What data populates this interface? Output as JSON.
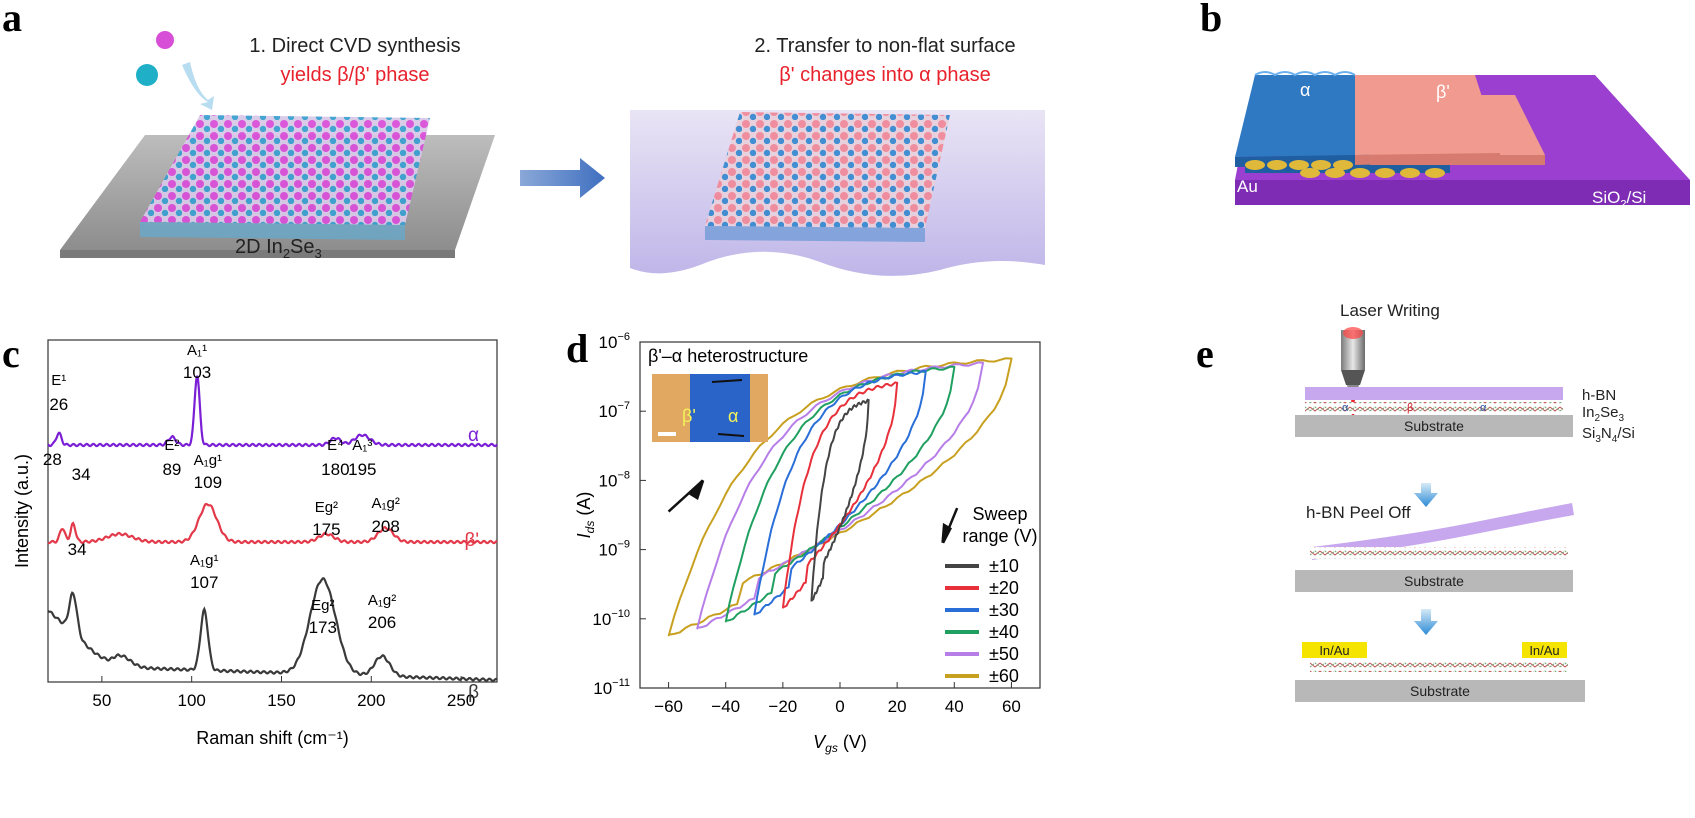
{
  "panel_labels": {
    "a": "a",
    "b": "b",
    "c": "c",
    "d": "d",
    "e": "e"
  },
  "panel_a": {
    "step1_title": "1. Direct CVD synthesis",
    "step1_sub": "yields β/β' phase",
    "step2_title": "2. Transfer to non-flat surface",
    "step2_sub": "β' changes into α phase",
    "material_label": "2D In",
    "material_sub1": "2",
    "material_mid": "Se",
    "material_sub2": "3"
  },
  "panel_b": {
    "alpha": "α",
    "beta": "β'",
    "au": "Au",
    "substrate": "SiO",
    "substrate_sub": "2",
    "substrate_end": "/Si"
  },
  "panel_e": {
    "laser": "Laser Writing",
    "hbn": "h-BN",
    "in2se3": "In",
    "in2se3_sub1": "2",
    "in2se3_mid": "Se",
    "in2se3_sub2": "3",
    "si3n4": "Si",
    "si3n4_sub1": "3",
    "si3n4_mid": "N",
    "si3n4_sub2": "4",
    "si3n4_end": "/Si",
    "substrate": "Substrate",
    "peel": "h-BN Peel Off",
    "contact": "In/Au",
    "alpha": "α",
    "beta": "β"
  },
  "colors": {
    "alpha": "#7a1fd6",
    "beta_prime": "#e23a4a",
    "beta": "#3a3a3a",
    "magenta": "#c94bd6",
    "cyan": "#2aa3c9"
  },
  "chart_data": [
    {
      "type": "line",
      "panel": "c",
      "xlabel": "Raman shift (cm⁻¹)",
      "ylabel": "Intensity (a.u.)",
      "xlim": [
        20,
        270
      ],
      "xticks": [
        50,
        100,
        150,
        200,
        250
      ],
      "series": [
        {
          "name": "α",
          "peaks": [
            {
              "x": 26,
              "label": "E¹",
              "value": "26"
            },
            {
              "x": 89,
              "label": "E²",
              "value": "89"
            },
            {
              "x": 103,
              "label": "A₁¹",
              "value": "103"
            },
            {
              "x": 180,
              "label": "E⁴",
              "value": "180"
            },
            {
              "x": 195,
              "label": "A₁³",
              "value": "195"
            }
          ]
        },
        {
          "name": "β'",
          "peaks": [
            {
              "x": 28,
              "label": "",
              "value": "28"
            },
            {
              "x": 34,
              "label": "",
              "value": "34"
            },
            {
              "x": 109,
              "label": "A₁g¹",
              "value": "109"
            },
            {
              "x": 175,
              "label": "Eg²",
              "value": "175"
            },
            {
              "x": 208,
              "label": "A₁g²",
              "value": "208"
            }
          ]
        },
        {
          "name": "β",
          "peaks": [
            {
              "x": 34,
              "label": "",
              "value": "34"
            },
            {
              "x": 107,
              "label": "A₁g¹",
              "value": "107"
            },
            {
              "x": 173,
              "label": "Eg²",
              "value": "173"
            },
            {
              "x": 206,
              "label": "A₁g²",
              "value": "206"
            }
          ]
        }
      ]
    },
    {
      "type": "line",
      "panel": "d",
      "title": "β'–α heterostructure",
      "xlabel": "V",
      "xlabel_sub": "gs",
      "xlabel_unit": " (V)",
      "ylabel": "I",
      "ylabel_sub": "ds",
      "ylabel_unit": " (A)",
      "xlim": [
        -70,
        70
      ],
      "xticks": [
        -60,
        -40,
        -20,
        0,
        20,
        40,
        60
      ],
      "ylog": true,
      "ylim_exp": [
        -11,
        -6
      ],
      "yticks_exp": [
        -11,
        -10,
        -9,
        -8,
        -7,
        -6
      ],
      "inset_labels": {
        "beta": "β'",
        "alpha": "α"
      },
      "legend_title": "Sweep range (V)",
      "legend_title_1": "Sweep",
      "legend_title_2": "range (V)",
      "legend_position": "bottom-right",
      "series": [
        {
          "name": "±10",
          "range": 10,
          "color": "#444444"
        },
        {
          "name": "±20",
          "range": 20,
          "color": "#e8303a"
        },
        {
          "name": "±30",
          "range": 30,
          "color": "#2a6fd8"
        },
        {
          "name": "±40",
          "range": 40,
          "color": "#20a060"
        },
        {
          "name": "±50",
          "range": 50,
          "color": "#b77ee8"
        },
        {
          "name": "±60",
          "range": 60,
          "color": "#c8a020"
        }
      ]
    }
  ]
}
